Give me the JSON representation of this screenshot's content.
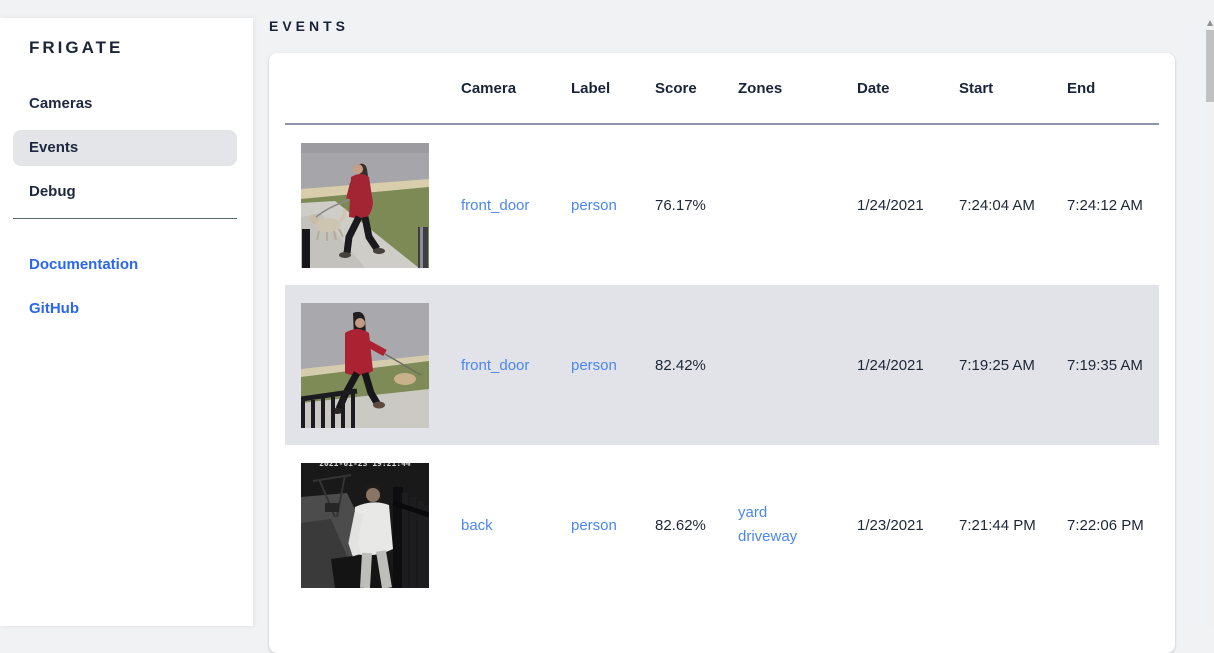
{
  "app": {
    "title": "FRIGATE"
  },
  "sidebar": {
    "nav_items": [
      {
        "label": "Cameras",
        "selected": false
      },
      {
        "label": "Events",
        "selected": true
      },
      {
        "label": "Debug",
        "selected": false
      }
    ],
    "links": [
      {
        "label": "Documentation"
      },
      {
        "label": "GitHub"
      }
    ]
  },
  "page": {
    "title": "EVENTS"
  },
  "events_table": {
    "columns": [
      "Camera",
      "Label",
      "Score",
      "Zones",
      "Date",
      "Start",
      "End"
    ],
    "rows": [
      {
        "camera": "front_door",
        "label": "person",
        "score": "76.17%",
        "zones": [],
        "date": "1/24/2021",
        "start": "7:24:04 AM",
        "end": "7:24:12 AM",
        "selected": false,
        "thumbnail": "front-door-day-1",
        "thumbnail_alt": "person in red coat walking a dog on a sidewalk"
      },
      {
        "camera": "front_door",
        "label": "person",
        "score": "82.42%",
        "zones": [],
        "date": "1/24/2021",
        "start": "7:19:25 AM",
        "end": "7:19:35 AM",
        "selected": true,
        "thumbnail": "front-door-day-2",
        "thumbnail_alt": "person in red hooded jacket walking a dog on a leash"
      },
      {
        "camera": "back",
        "label": "person",
        "score": "82.62%",
        "zones": [
          "yard",
          "driveway"
        ],
        "date": "1/23/2021",
        "start": "7:21:44 PM",
        "end": "7:22:06 PM",
        "selected": false,
        "thumbnail": "back-night",
        "thumbnail_alt": "black and white night view of person in light shirt",
        "thumbnail_timestamp": "2021-01-23 19:21:44"
      }
    ]
  },
  "colors": {
    "table_link_blue": "#4b86f0",
    "sidebar_link_blue": "#2a66ee",
    "row_highlight": "#e2e3e8",
    "page_background": "#f1f2f4",
    "text_dark": "#1d2737"
  }
}
